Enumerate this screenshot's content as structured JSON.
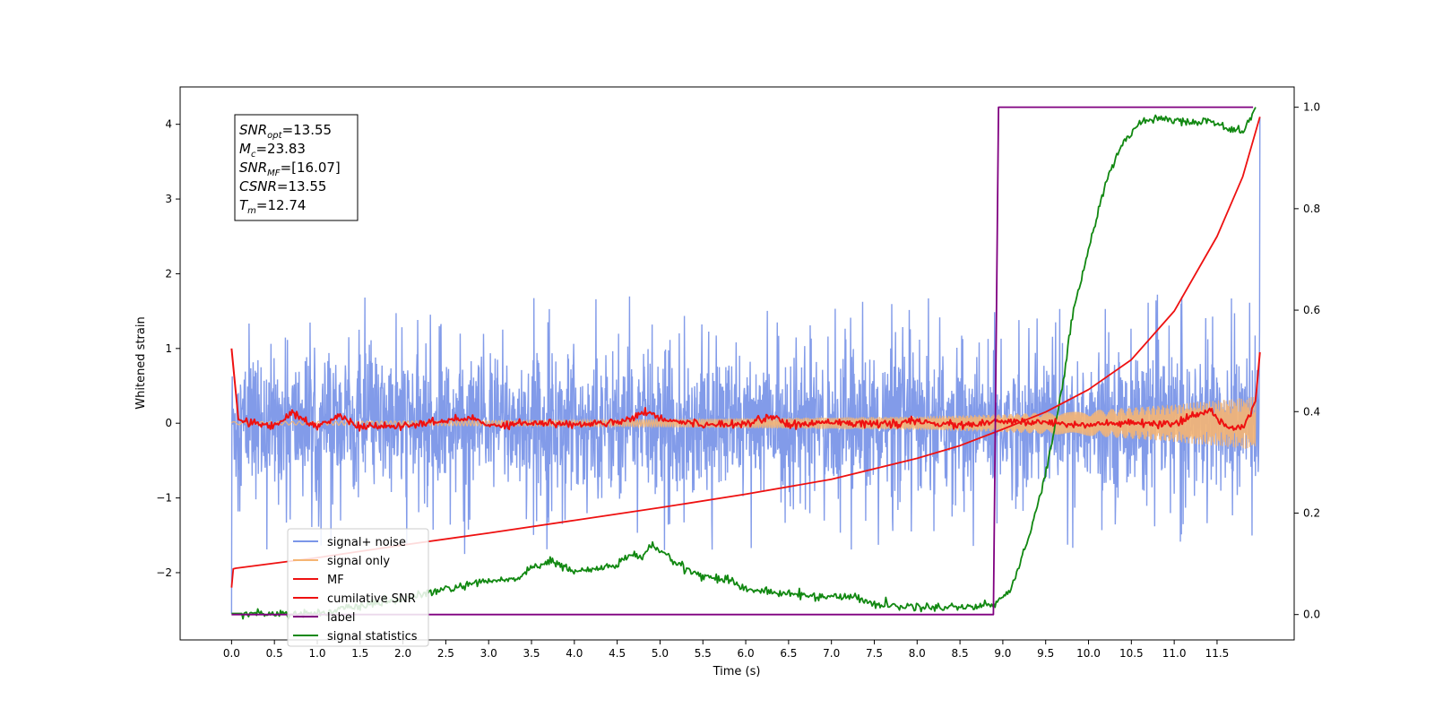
{
  "chart_data": {
    "type": "line",
    "xlabel": "Time (s)",
    "ylabel": "Whitened strain",
    "xlim": [
      -0.6,
      12.4
    ],
    "ylim": [
      -2.9,
      4.5
    ],
    "y2lim": [
      -0.05,
      1.04
    ],
    "grid": false,
    "x_ticks": [
      0.0,
      0.5,
      1.0,
      1.5,
      2.0,
      2.5,
      3.0,
      3.5,
      4.0,
      4.5,
      5.0,
      5.5,
      6.0,
      6.5,
      7.0,
      7.5,
      8.0,
      8.5,
      9.0,
      9.5,
      10.0,
      10.5,
      11.0,
      11.5
    ],
    "x_tick_labels": [
      "0.0",
      "0.5",
      "1.0",
      "1.5",
      "2.0",
      "2.5",
      "3.0",
      "3.5",
      "4.0",
      "4.5",
      "5.0",
      "5.5",
      "6.0",
      "6.5",
      "7.0",
      "7.5",
      "8.0",
      "8.5",
      "9.0",
      "9.5",
      "10.0",
      "10.5",
      "11.0",
      "11.5"
    ],
    "y_ticks": [
      -2,
      -1,
      0,
      1,
      2,
      3,
      4
    ],
    "y_tick_labels": [
      "−2",
      "−1",
      "0",
      "1",
      "2",
      "3",
      "4"
    ],
    "y2_ticks": [
      0.0,
      0.2,
      0.4,
      0.6,
      0.8,
      1.0
    ],
    "y2_tick_labels": [
      "0.0",
      "0.2",
      "0.4",
      "0.6",
      "0.8",
      "1.0"
    ],
    "info_box": {
      "lines": [
        {
          "sym": "SNR",
          "sub": "opt",
          "val": "=13.55"
        },
        {
          "sym": "M",
          "sub": "c",
          "val": "=23.83"
        },
        {
          "sym": "SNR",
          "sub": "MF",
          "val": "=[16.07]"
        },
        {
          "sym": "CSNR",
          "sub": "",
          "val": "=13.55"
        },
        {
          "sym": "T",
          "sub": "m",
          "val": "=12.74"
        }
      ]
    },
    "legend": {
      "placement": "lower-left",
      "entries": [
        {
          "label": "signal+ noise",
          "color": "#7b96e8"
        },
        {
          "label": "signal only",
          "color": "#f5b573"
        },
        {
          "label": "MF",
          "color": "#ee1111"
        },
        {
          "label": "cumilative SNR",
          "color": "#ee1111"
        },
        {
          "label": "label",
          "color": "#800080"
        },
        {
          "label": "signal statistics",
          "color": "#118811"
        }
      ]
    },
    "series": [
      {
        "name": "signal+ noise",
        "axis": "left",
        "color": "#7b96e8",
        "style": "noise band, amplitude about ±1.4 whitened strain, spikes to about 1.8 and −1.75, final spike to about 4.1 at t=12.0"
      },
      {
        "name": "signal only",
        "axis": "left",
        "color": "#f5b573",
        "style": "chirp oscillation, amplitude growing from about 0.02 at t=0 to about 0.35 at t=11.9",
        "x": [
          0.0,
          4.0,
          8.0,
          9.0,
          10.0,
          11.0,
          11.9
        ],
        "amplitude": [
          0.02,
          0.04,
          0.09,
          0.12,
          0.17,
          0.25,
          0.35
        ]
      },
      {
        "name": "MF",
        "axis": "left",
        "color": "#ee1111",
        "x": [
          0.0,
          0.08,
          0.2,
          0.5,
          0.7,
          1.0,
          1.25,
          1.5,
          2.0,
          2.5,
          2.8,
          3.0,
          3.5,
          4.0,
          4.5,
          4.9,
          5.0,
          5.5,
          6.0,
          6.35,
          6.5,
          7.0,
          7.5,
          8.0,
          8.5,
          9.0,
          9.5,
          10.0,
          10.5,
          11.0,
          11.4,
          11.6,
          11.8,
          11.95,
          12.0
        ],
        "y": [
          1.0,
          0.05,
          0.0,
          -0.03,
          0.14,
          -0.05,
          0.1,
          -0.05,
          -0.04,
          0.03,
          0.07,
          -0.03,
          0.01,
          -0.02,
          0.02,
          0.16,
          0.06,
          -0.02,
          0.0,
          0.1,
          -0.04,
          0.03,
          -0.02,
          0.02,
          -0.03,
          0.02,
          0.01,
          -0.02,
          0.0,
          -0.02,
          0.18,
          -0.04,
          -0.05,
          0.3,
          0.95
        ]
      },
      {
        "name": "cumilative SNR",
        "axis": "left",
        "color": "#ee1111",
        "x": [
          0.0,
          0.02,
          0.05,
          1.0,
          2.0,
          3.0,
          4.0,
          5.0,
          6.0,
          7.0,
          8.0,
          8.5,
          9.0,
          9.5,
          10.0,
          10.5,
          11.0,
          11.5,
          11.8,
          12.0
        ],
        "y": [
          -2.2,
          -1.95,
          -1.94,
          -1.8,
          -1.63,
          -1.47,
          -1.3,
          -1.13,
          -0.95,
          -0.75,
          -0.47,
          -0.3,
          -0.08,
          0.15,
          0.45,
          0.85,
          1.5,
          2.5,
          3.3,
          4.1
        ]
      },
      {
        "name": "label",
        "axis": "right",
        "color": "#800080",
        "x": [
          0.0,
          8.89,
          8.95,
          11.92
        ],
        "y": [
          0.0,
          0.0,
          1.0,
          1.0
        ]
      },
      {
        "name": "signal statistics",
        "axis": "right",
        "color": "#118811",
        "x": [
          0.0,
          1.0,
          2.0,
          2.5,
          3.0,
          3.3,
          3.5,
          3.7,
          3.8,
          4.0,
          4.3,
          4.5,
          4.7,
          4.8,
          4.9,
          5.0,
          5.2,
          5.5,
          5.8,
          6.0,
          6.5,
          7.0,
          7.3,
          7.5,
          8.0,
          8.5,
          8.9,
          9.1,
          9.3,
          9.5,
          9.7,
          9.8,
          10.0,
          10.2,
          10.4,
          10.6,
          10.8,
          11.0,
          11.2,
          11.4,
          11.6,
          11.8,
          11.95
        ],
        "y": [
          0.002,
          0.002,
          0.03,
          0.05,
          0.065,
          0.07,
          0.09,
          0.105,
          0.1,
          0.085,
          0.09,
          0.1,
          0.12,
          0.11,
          0.14,
          0.125,
          0.1,
          0.075,
          0.07,
          0.05,
          0.04,
          0.035,
          0.035,
          0.02,
          0.015,
          0.015,
          0.02,
          0.05,
          0.15,
          0.28,
          0.45,
          0.58,
          0.72,
          0.85,
          0.93,
          0.97,
          0.98,
          0.975,
          0.97,
          0.975,
          0.96,
          0.95,
          1.0
        ]
      }
    ]
  }
}
